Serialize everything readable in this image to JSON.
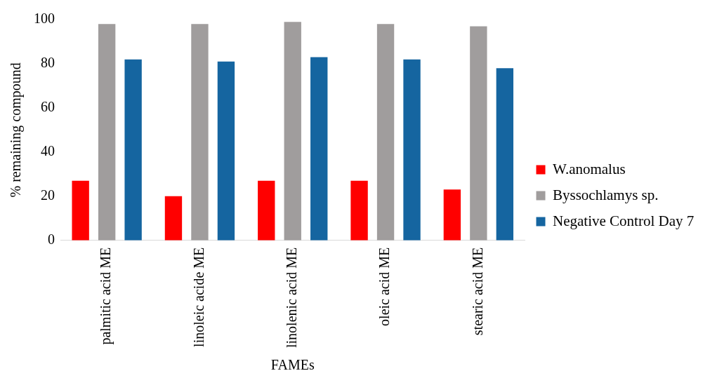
{
  "chart_data": {
    "type": "bar",
    "xlabel": "FAMEs",
    "ylabel": "% remaining compound",
    "categories": [
      "palmitic acid ME",
      "linoleic acide ME",
      "linolenic acid ME",
      "oleic acid ME",
      "stearic acid ME"
    ],
    "series": [
      {
        "name": "W.anomalus",
        "color": "#ff0000",
        "values": [
          27,
          20,
          27,
          27,
          23
        ]
      },
      {
        "name": "Byssochlamys sp.",
        "color": "#a09d9d",
        "values": [
          98,
          98,
          99,
          98,
          97
        ]
      },
      {
        "name": "Negative Control Day 7",
        "color": "#1565a0",
        "values": [
          82,
          81,
          83,
          82,
          78
        ]
      }
    ],
    "ylim": [
      0,
      100
    ],
    "yticks": [
      0,
      20,
      40,
      60,
      80,
      100
    ],
    "grid": false,
    "legend": "right"
  }
}
